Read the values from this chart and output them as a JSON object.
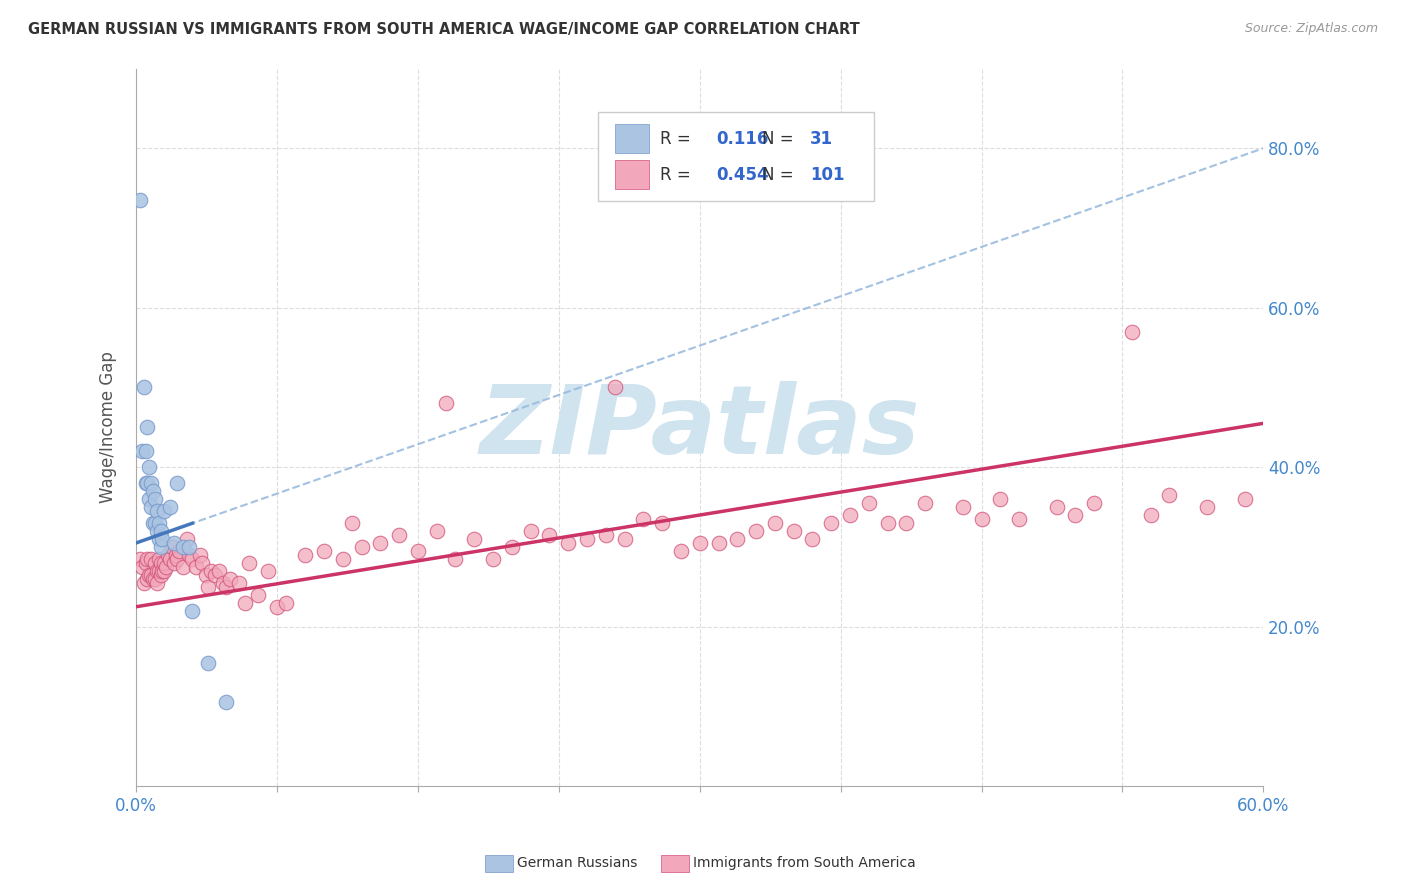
{
  "title": "GERMAN RUSSIAN VS IMMIGRANTS FROM SOUTH AMERICA WAGE/INCOME GAP CORRELATION CHART",
  "source": "Source: ZipAtlas.com",
  "ylabel": "Wage/Income Gap",
  "right_yticklabels": [
    "20.0%",
    "40.0%",
    "60.0%",
    "80.0%"
  ],
  "right_ytick_vals": [
    0.2,
    0.4,
    0.6,
    0.8
  ],
  "xmin": 0.0,
  "xmax": 0.6,
  "ymin": 0.0,
  "ymax": 0.9,
  "blue_R": 0.116,
  "blue_N": 31,
  "pink_R": 0.454,
  "pink_N": 101,
  "blue_dot_color": "#aac4e2",
  "blue_edge_color": "#7799cc",
  "pink_dot_color": "#f2a8ba",
  "pink_edge_color": "#d0507a",
  "blue_line_color": "#4477bb",
  "blue_dash_color": "#99bbdd",
  "pink_line_color": "#cc3366",
  "watermark_text": "ZIPatlas",
  "watermark_color": "#d0e4f0",
  "legend_label_blue": "German Russians",
  "legend_label_pink": "Immigrants from South America",
  "blue_x": [
    0.002,
    0.003,
    0.004,
    0.005,
    0.005,
    0.006,
    0.006,
    0.007,
    0.007,
    0.008,
    0.008,
    0.009,
    0.009,
    0.01,
    0.01,
    0.011,
    0.011,
    0.012,
    0.012,
    0.013,
    0.013,
    0.014,
    0.015,
    0.018,
    0.02,
    0.022,
    0.025,
    0.028,
    0.03,
    0.038,
    0.048
  ],
  "blue_y": [
    0.735,
    0.42,
    0.5,
    0.42,
    0.38,
    0.45,
    0.38,
    0.4,
    0.36,
    0.38,
    0.35,
    0.37,
    0.33,
    0.36,
    0.33,
    0.345,
    0.32,
    0.33,
    0.31,
    0.32,
    0.3,
    0.31,
    0.345,
    0.35,
    0.305,
    0.38,
    0.3,
    0.3,
    0.22,
    0.155,
    0.105
  ],
  "pink_x": [
    0.002,
    0.003,
    0.004,
    0.005,
    0.006,
    0.006,
    0.007,
    0.008,
    0.008,
    0.009,
    0.01,
    0.01,
    0.011,
    0.011,
    0.012,
    0.012,
    0.013,
    0.013,
    0.014,
    0.015,
    0.015,
    0.016,
    0.017,
    0.018,
    0.019,
    0.02,
    0.021,
    0.022,
    0.023,
    0.025,
    0.027,
    0.028,
    0.03,
    0.032,
    0.034,
    0.035,
    0.037,
    0.038,
    0.04,
    0.042,
    0.044,
    0.046,
    0.048,
    0.05,
    0.055,
    0.058,
    0.06,
    0.065,
    0.07,
    0.075,
    0.08,
    0.09,
    0.1,
    0.11,
    0.115,
    0.12,
    0.13,
    0.14,
    0.15,
    0.16,
    0.165,
    0.17,
    0.18,
    0.19,
    0.2,
    0.21,
    0.22,
    0.23,
    0.24,
    0.25,
    0.255,
    0.26,
    0.27,
    0.28,
    0.29,
    0.3,
    0.31,
    0.32,
    0.33,
    0.34,
    0.35,
    0.36,
    0.37,
    0.38,
    0.39,
    0.4,
    0.41,
    0.42,
    0.44,
    0.45,
    0.46,
    0.47,
    0.49,
    0.5,
    0.51,
    0.53,
    0.54,
    0.55,
    0.57,
    0.59
  ],
  "pink_y": [
    0.285,
    0.275,
    0.255,
    0.28,
    0.26,
    0.285,
    0.265,
    0.265,
    0.285,
    0.26,
    0.26,
    0.28,
    0.27,
    0.255,
    0.27,
    0.285,
    0.265,
    0.28,
    0.27,
    0.27,
    0.28,
    0.275,
    0.29,
    0.285,
    0.3,
    0.28,
    0.29,
    0.285,
    0.295,
    0.275,
    0.31,
    0.29,
    0.285,
    0.275,
    0.29,
    0.28,
    0.265,
    0.25,
    0.27,
    0.265,
    0.27,
    0.255,
    0.25,
    0.26,
    0.255,
    0.23,
    0.28,
    0.24,
    0.27,
    0.225,
    0.23,
    0.29,
    0.295,
    0.285,
    0.33,
    0.3,
    0.305,
    0.315,
    0.295,
    0.32,
    0.48,
    0.285,
    0.31,
    0.285,
    0.3,
    0.32,
    0.315,
    0.305,
    0.31,
    0.315,
    0.5,
    0.31,
    0.335,
    0.33,
    0.295,
    0.305,
    0.305,
    0.31,
    0.32,
    0.33,
    0.32,
    0.31,
    0.33,
    0.34,
    0.355,
    0.33,
    0.33,
    0.355,
    0.35,
    0.335,
    0.36,
    0.335,
    0.35,
    0.34,
    0.355,
    0.57,
    0.34,
    0.365,
    0.35,
    0.36
  ],
  "blue_trend_x0": 0.0,
  "blue_trend_y0": 0.305,
  "blue_trend_x1": 0.6,
  "blue_trend_y1": 0.8,
  "pink_trend_x0": 0.0,
  "pink_trend_y0": 0.225,
  "pink_trend_x1": 0.6,
  "pink_trend_y1": 0.455
}
